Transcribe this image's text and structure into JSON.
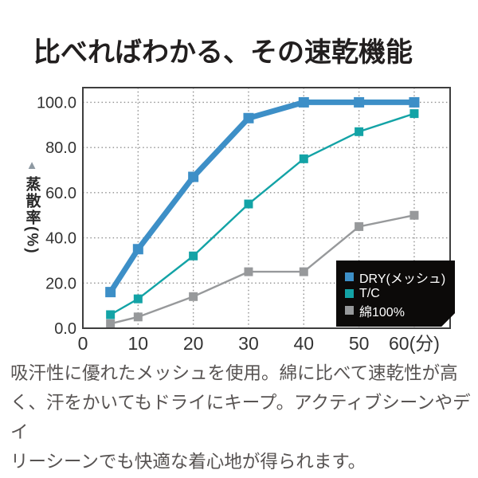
{
  "title": "比べればわかる、その速乾機能",
  "chart_data": {
    "type": "line",
    "title": "比べればわかる、その速乾機能",
    "ylabel": "蒸散率(%)",
    "ylabel_marker": "▲",
    "xlabel_unit": "(分)",
    "x": [
      5,
      10,
      20,
      30,
      40,
      50,
      60
    ],
    "xlim": [
      0,
      66.5
    ],
    "ylim": [
      0,
      106.5
    ],
    "x_ticks": [
      0,
      10,
      20,
      30,
      40,
      50,
      60
    ],
    "x_tick_labels": [
      "0",
      "10",
      "20",
      "30",
      "40",
      "50",
      "60(分)"
    ],
    "y_ticks": [
      0,
      20,
      40,
      60,
      80,
      100
    ],
    "y_tick_labels": [
      "0.0",
      "20.0",
      "40.0",
      "60.0",
      "80.0",
      "100.0"
    ],
    "grid": "dotted",
    "legend_position": "bottom-right",
    "series": [
      {
        "name": "DRY(メッシュ)",
        "color": "#3d8fc7",
        "line_width": 7,
        "marker_size": 13,
        "values": [
          16,
          35,
          67,
          93,
          100,
          100,
          100
        ]
      },
      {
        "name": "T/C",
        "color": "#13a3a6",
        "line_width": 2.4,
        "marker_size": 11,
        "values": [
          6,
          13,
          32,
          55,
          75,
          87,
          95
        ]
      },
      {
        "name": "綿100%",
        "color": "#97999b",
        "line_width": 2.4,
        "marker_size": 11,
        "values": [
          2,
          5,
          14,
          25,
          25,
          45,
          50
        ]
      }
    ]
  },
  "colors": {
    "grid": "#8f8f8f",
    "border": "#3e3e3e",
    "tick_text": "#333333",
    "legend_bg": "#0c0a09",
    "legend_text": "#ffffff",
    "title_text": "#221f1f",
    "body_text": "#575352",
    "ylabel_marker": "#8e99a2"
  },
  "description": "吸汗性に優れたメッシュを使用。綿に比べて速乾性が高\nく、汗をかいてもドライにキープ。アクティブシーンやデイ\nリーシーンでも快適な着心地が得られます。"
}
